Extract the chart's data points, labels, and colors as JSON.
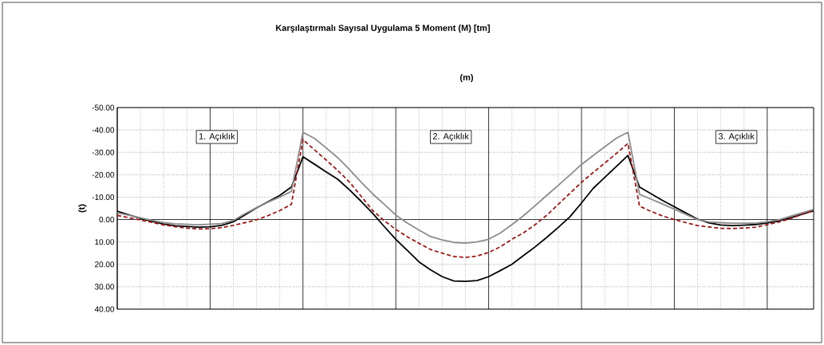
{
  "chart_data": {
    "type": "line",
    "title": "Karşılaştırmalı Sayısal Uygulama 5 Moment (M) [tm]",
    "xlabel": "(m)",
    "ylabel": "(t)",
    "categories": [
      null,
      null,
      null,
      null,
      null,
      null,
      null,
      null,
      null,
      null,
      null,
      null,
      null,
      null,
      null,
      null,
      null,
      null,
      null,
      null,
      null,
      null,
      null,
      null,
      null,
      null,
      null,
      null,
      null,
      null,
      null,
      null,
      null,
      null,
      null,
      null,
      null,
      null,
      null,
      null,
      null,
      null,
      null,
      null,
      null,
      null,
      null,
      null,
      null,
      null,
      null,
      null,
      null,
      null,
      null,
      null,
      null,
      null,
      null,
      null,
      null
    ],
    "ylim": [
      40,
      -50
    ],
    "yticks": [
      {
        "value": -50,
        "label": "-50.00"
      },
      {
        "value": -40,
        "label": "-40.00"
      },
      {
        "value": -30,
        "label": "-30.00"
      },
      {
        "value": -20,
        "label": "-20.00"
      },
      {
        "value": -10,
        "label": "-10.00"
      },
      {
        "value": 0,
        "label": "0.00"
      },
      {
        "value": 10,
        "label": "10.00"
      },
      {
        "value": 20,
        "label": "20.00"
      },
      {
        "value": 30,
        "label": "30.00"
      },
      {
        "value": 40,
        "label": "40.00"
      }
    ],
    "tick_labels": "y",
    "grid": true,
    "series": [
      {
        "color": "#000000",
        "line_style": "solid",
        "values": [
          -3.7,
          -2.1,
          -0.5,
          0.8,
          2.0,
          2.8,
          3.1,
          3.4,
          3.2,
          2.6,
          1.0,
          -2.1,
          -5.2,
          -8.0,
          -10.8,
          -14.5,
          -28,
          -24.7,
          -21.3,
          -18,
          -13.3,
          -8.2,
          -2.8,
          3.1,
          8.8,
          13.8,
          18.9,
          22.5,
          25.5,
          27.4,
          27.6,
          27.2,
          25.5,
          22.8,
          20.0,
          16.1,
          12.2,
          8.0,
          3.5,
          -1.2,
          -7.4,
          -13.9,
          -18.8,
          -23.7,
          -28.6,
          -14.5,
          -11.5,
          -8.5,
          -5.7,
          -2.9,
          -0.2,
          1.5,
          2.4,
          2.7,
          2.5,
          2.2,
          1.5,
          0.6,
          -0.8,
          -2.4,
          -3.9
        ]
      },
      {
        "color": "#8c8c8c",
        "line_style": "solid",
        "values": [
          -3,
          -1.9,
          -0.8,
          0.4,
          1.4,
          1.9,
          2.1,
          2.3,
          2.1,
          1.8,
          0.4,
          -2.6,
          -5.3,
          -7.8,
          -10,
          -12.6,
          -39,
          -36.2,
          -32,
          -27.6,
          -22.4,
          -16.8,
          -11.5,
          -6.8,
          -2,
          1.6,
          4.7,
          7.6,
          9.1,
          10.2,
          10.5,
          10,
          8.8,
          6.0,
          2.3,
          -1.7,
          -6.2,
          -10.8,
          -15.3,
          -19.9,
          -24.6,
          -28.6,
          -32.5,
          -36.3,
          -39,
          -11.3,
          -9.1,
          -6.9,
          -4.6,
          -2.3,
          0,
          1.1,
          1.4,
          1.6,
          1.6,
          1.6,
          1.0,
          0.1,
          -1.5,
          -3.0,
          -4.5
        ]
      },
      {
        "color": "#a01818",
        "line_style": "dashed",
        "values": [
          -1.9,
          -0.8,
          0.2,
          1.3,
          2.4,
          3.2,
          3.8,
          4.2,
          4.1,
          3.6,
          2.6,
          1.4,
          0.1,
          -1.8,
          -4,
          -6.8,
          -35.7,
          -31.1,
          -26.6,
          -21.9,
          -16.8,
          -10.5,
          -4.1,
          0.5,
          4.4,
          7.7,
          10.6,
          13.4,
          15.0,
          16.5,
          16.9,
          16.3,
          14.7,
          12.2,
          8.8,
          5.9,
          2.3,
          -1.9,
          -6.8,
          -11.7,
          -16.6,
          -21,
          -25.2,
          -29.5,
          -34,
          -6,
          -3.6,
          -1.6,
          0,
          1.4,
          2.7,
          3.3,
          3.9,
          4.0,
          3.8,
          3.4,
          2.3,
          1.1,
          -0.4,
          -2.3,
          -4.0
        ]
      }
    ],
    "annotations": [
      "1.  Açıklık",
      "2.  Açıklık",
      "3.  Açıklık"
    ]
  }
}
